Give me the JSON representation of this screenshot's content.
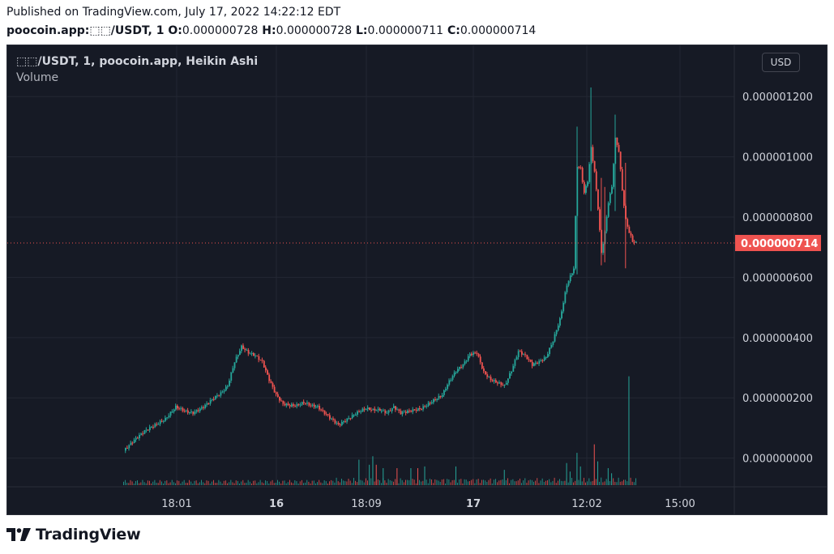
{
  "header": {
    "published": "Published on TradingView.com, July 17, 2022 14:22:12 EDT",
    "symbol_line": "poocoin.app:⬚⬚/USDT, 1",
    "o_label": "O:",
    "o_value": "0.000000728",
    "h_label": "H:",
    "h_value": "0.000000728",
    "l_label": "L:",
    "l_value": "0.000000711",
    "c_label": "C:",
    "c_value": "0.000000714"
  },
  "legend": {
    "title": "⬚⬚/USDT, 1, poocoin.app, Heikin Ashi",
    "volume": "Volume"
  },
  "toolbar": {
    "currency": "USD"
  },
  "footer": {
    "brand": "TradingView"
  },
  "colors": {
    "up": "#26a69a",
    "down": "#ef5350",
    "background": "#161a25",
    "grid": "#232733",
    "axis_text": "#d1d4dc"
  },
  "chart_data": {
    "type": "candlestick",
    "style": "Heikin Ashi",
    "y_ticks": [
      "0.000001200",
      "0.000001000",
      "0.000000800",
      "0.000000600",
      "0.000000400",
      "0.000000200",
      "0.000000000"
    ],
    "y_range": [
      -9.5e-08,
      1.3e-06
    ],
    "x_ticks": [
      "18:01",
      "16",
      "18:09",
      "17",
      "12:02",
      "15:00"
    ],
    "last_price": "0.000000714",
    "last_value": 7.14e-07,
    "price_path": [
      [
        0,
        2.5e-08
      ],
      [
        3,
        6e-08
      ],
      [
        6,
        9e-08
      ],
      [
        9,
        1.1e-07
      ],
      [
        12,
        1.3e-07
      ],
      [
        15,
        1.7e-07
      ],
      [
        18,
        1.55e-07
      ],
      [
        20,
        1.5e-07
      ],
      [
        23,
        1.7e-07
      ],
      [
        26,
        2e-07
      ],
      [
        28,
        2.15e-07
      ],
      [
        30,
        2.4e-07
      ],
      [
        32,
        3.2e-07
      ],
      [
        34,
        3.7e-07
      ],
      [
        36,
        3.5e-07
      ],
      [
        38,
        3.4e-07
      ],
      [
        40,
        3.2e-07
      ],
      [
        42,
        2.6e-07
      ],
      [
        44,
        2.1e-07
      ],
      [
        46,
        1.8e-07
      ],
      [
        48,
        1.75e-07
      ],
      [
        50,
        1.75e-07
      ],
      [
        52,
        1.85e-07
      ],
      [
        54,
        1.75e-07
      ],
      [
        56,
        1.7e-07
      ],
      [
        58,
        1.5e-07
      ],
      [
        60,
        1.3e-07
      ],
      [
        62,
        1.1e-07
      ],
      [
        64,
        1.25e-07
      ],
      [
        66,
        1.4e-07
      ],
      [
        68,
        1.55e-07
      ],
      [
        70,
        1.65e-07
      ],
      [
        72,
        1.6e-07
      ],
      [
        74,
        1.6e-07
      ],
      [
        76,
        1.5e-07
      ],
      [
        78,
        1.7e-07
      ],
      [
        80,
        1.5e-07
      ],
      [
        82,
        1.55e-07
      ],
      [
        84,
        1.6e-07
      ],
      [
        86,
        1.65e-07
      ],
      [
        88,
        1.8e-07
      ],
      [
        90,
        1.95e-07
      ],
      [
        92,
        2.1e-07
      ],
      [
        94,
        2.55e-07
      ],
      [
        96,
        2.9e-07
      ],
      [
        98,
        3.1e-07
      ],
      [
        100,
        3.45e-07
      ],
      [
        102,
        3.5e-07
      ],
      [
        104,
        2.85e-07
      ],
      [
        106,
        2.6e-07
      ],
      [
        108,
        2.5e-07
      ],
      [
        110,
        2.4e-07
      ],
      [
        112,
        2.9e-07
      ],
      [
        114,
        3.55e-07
      ],
      [
        116,
        3.4e-07
      ],
      [
        118,
        3.1e-07
      ],
      [
        120,
        3.2e-07
      ],
      [
        122,
        3.35e-07
      ],
      [
        124,
        3.9e-07
      ],
      [
        126,
        4.6e-07
      ],
      [
        128,
        5.75e-07
      ],
      [
        130,
        6.3e-07
      ],
      [
        131,
        9.7e-07
      ],
      [
        132,
        9.6e-07
      ],
      [
        133,
        8.8e-07
      ],
      [
        134,
        9.2e-07
      ],
      [
        135,
        1.03e-06
      ],
      [
        136,
        9.5e-07
      ],
      [
        137,
        8.3e-07
      ],
      [
        138,
        6.8e-07
      ],
      [
        139,
        7.5e-07
      ],
      [
        140,
        8.5e-07
      ],
      [
        141,
        9e-07
      ],
      [
        142,
        1.06e-06
      ],
      [
        143,
        1.02e-06
      ],
      [
        144,
        8.9e-07
      ],
      [
        145,
        7.9e-07
      ],
      [
        146,
        7.5e-07
      ],
      [
        147,
        7.2e-07
      ],
      [
        148,
        7.14e-07
      ]
    ],
    "wicks": [
      [
        131,
        6.1e-07,
        1.1e-06
      ],
      [
        135,
        8.2e-07,
        1.23e-06
      ],
      [
        138,
        6.4e-07,
        9.3e-07
      ],
      [
        142,
        8.2e-07,
        1.14e-06
      ],
      [
        145,
        6.3e-07,
        9.8e-07
      ],
      [
        139,
        6.5e-07,
        9e-07
      ]
    ],
    "volume_spikes": [
      [
        68,
        0.75
      ],
      [
        71,
        0.6
      ],
      [
        72,
        0.85
      ],
      [
        73,
        0.6
      ],
      [
        75,
        0.5
      ],
      [
        79,
        0.5
      ],
      [
        83,
        0.5
      ],
      [
        85,
        0.5
      ],
      [
        87,
        0.55
      ],
      [
        96,
        0.55
      ],
      [
        110,
        0.45
      ],
      [
        128,
        0.65
      ],
      [
        129,
        0.4
      ],
      [
        131,
        0.95
      ],
      [
        132,
        0.55
      ],
      [
        136,
        1.2
      ],
      [
        137,
        0.7
      ],
      [
        140,
        0.5
      ],
      [
        146,
        3.2
      ],
      [
        141,
        0.35
      ]
    ]
  }
}
